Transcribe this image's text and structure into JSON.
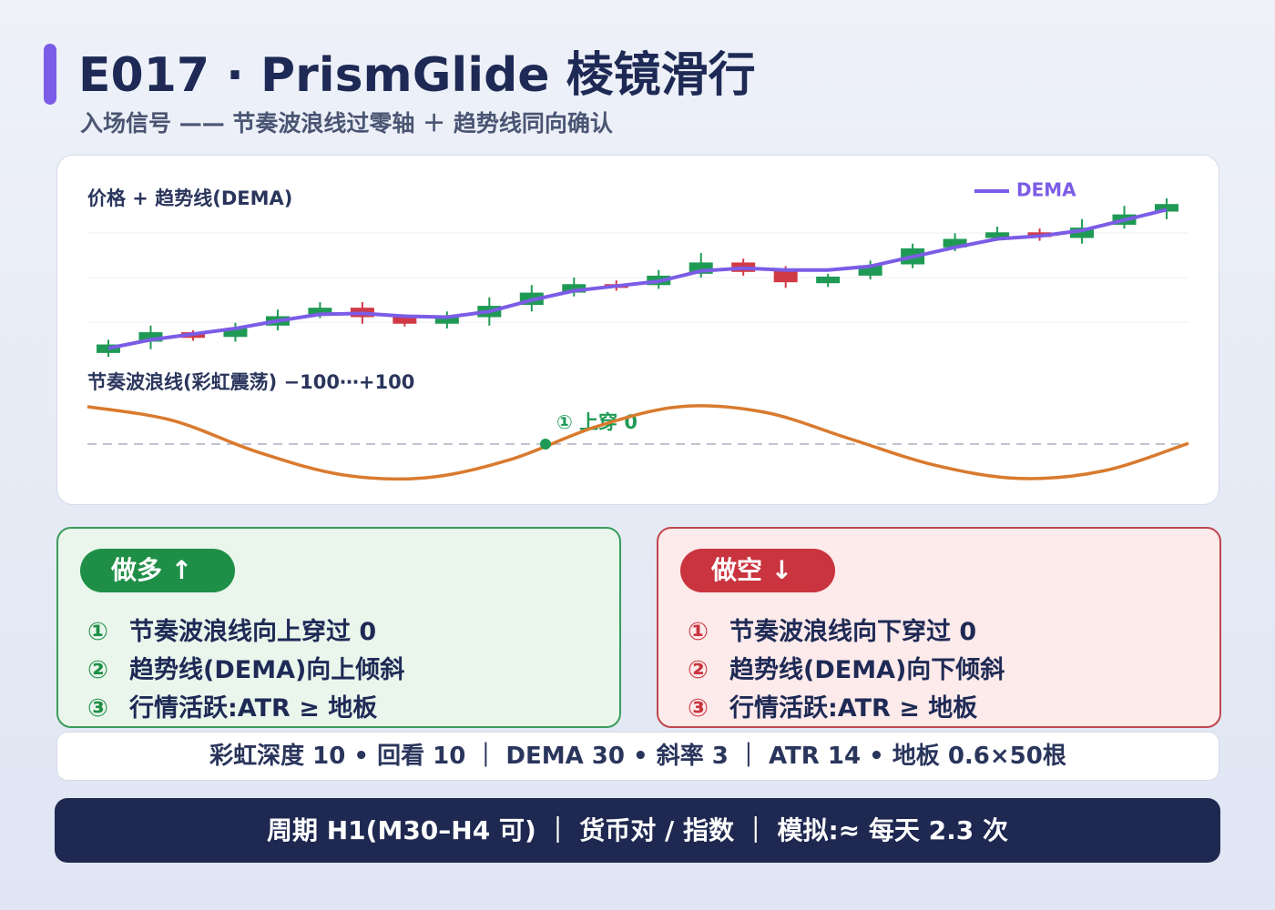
{
  "header": {
    "title": "E017 · PrismGlide 棱镜滑行",
    "subtitle": "入场信号 —— 节奏波浪线过零轴 ＋ 趋势线同向确认"
  },
  "chart_data": [
    {
      "type": "candlestick",
      "title": "价格 + 趋势线(DEMA)",
      "up_color": "#1f9a55",
      "down_color": "#d03a45",
      "open": [
        16,
        28,
        38,
        33,
        45,
        57,
        64,
        54,
        47,
        54,
        67,
        80,
        89,
        88,
        100,
        112,
        103,
        90,
        98,
        110,
        128,
        138,
        144,
        138,
        152,
        166
      ],
      "close": [
        25,
        38,
        32,
        42,
        55,
        64,
        54,
        47,
        55,
        66,
        80,
        89,
        85,
        98,
        112,
        102,
        91,
        97,
        109,
        127,
        137,
        144,
        139,
        149,
        163,
        174
      ],
      "high": [
        30,
        45,
        40,
        48,
        62,
        70,
        70,
        57,
        60,
        75,
        88,
        96,
        93,
        104,
        122,
        116,
        108,
        100,
        114,
        132,
        143,
        150,
        148,
        158,
        172,
        180
      ],
      "low": [
        12,
        20,
        29,
        28,
        40,
        53,
        47,
        44,
        42,
        45,
        60,
        76,
        82,
        84,
        96,
        98,
        85,
        86,
        94,
        106,
        124,
        135,
        135,
        132,
        148,
        158
      ],
      "series": [
        {
          "name": "DEMA",
          "color": "#7b5ce6",
          "values": [
            21,
            30,
            36,
            42,
            50,
            57,
            58,
            55,
            54,
            60,
            72,
            82,
            87,
            92,
            103,
            106,
            104,
            104,
            108,
            118,
            128,
            137,
            140,
            146,
            157,
            168
          ]
        }
      ]
    },
    {
      "type": "line",
      "title": "节奏波浪线(彩虹震荡) −100⋯+100",
      "ylim": [
        -100,
        100
      ],
      "annotation": "① 上穿 0",
      "series": [
        {
          "color": "#d97a2e",
          "values": [
            98,
            62,
            -20,
            -80,
            -88,
            -40,
            45,
            98,
            83,
            14,
            -55,
            -90,
            -70,
            2
          ]
        }
      ]
    }
  ],
  "long": {
    "label": "做多 ↑",
    "items": [
      {
        "num": "①",
        "text": "节奏波浪线向上穿过 0"
      },
      {
        "num": "②",
        "text": "趋势线(DEMA)向上倾斜"
      },
      {
        "num": "③",
        "text": "行情活跃:ATR ≥ 地板"
      }
    ]
  },
  "short": {
    "label": "做空 ↓",
    "items": [
      {
        "num": "①",
        "text": "节奏波浪线向下穿过 0"
      },
      {
        "num": "②",
        "text": "趋势线(DEMA)向下倾斜"
      },
      {
        "num": "③",
        "text": "行情活跃:ATR ≥ 地板"
      }
    ]
  },
  "params": "彩虹深度 10 • 回看 10 ｜ DEMA 30 • 斜率 3 ｜ ATR 14 • 地板 0.6×50根",
  "footer": "周期 H1(M30–H4 可) ｜ 货币对 / 指数 ｜ 模拟:≈ 每天 2.3 次"
}
